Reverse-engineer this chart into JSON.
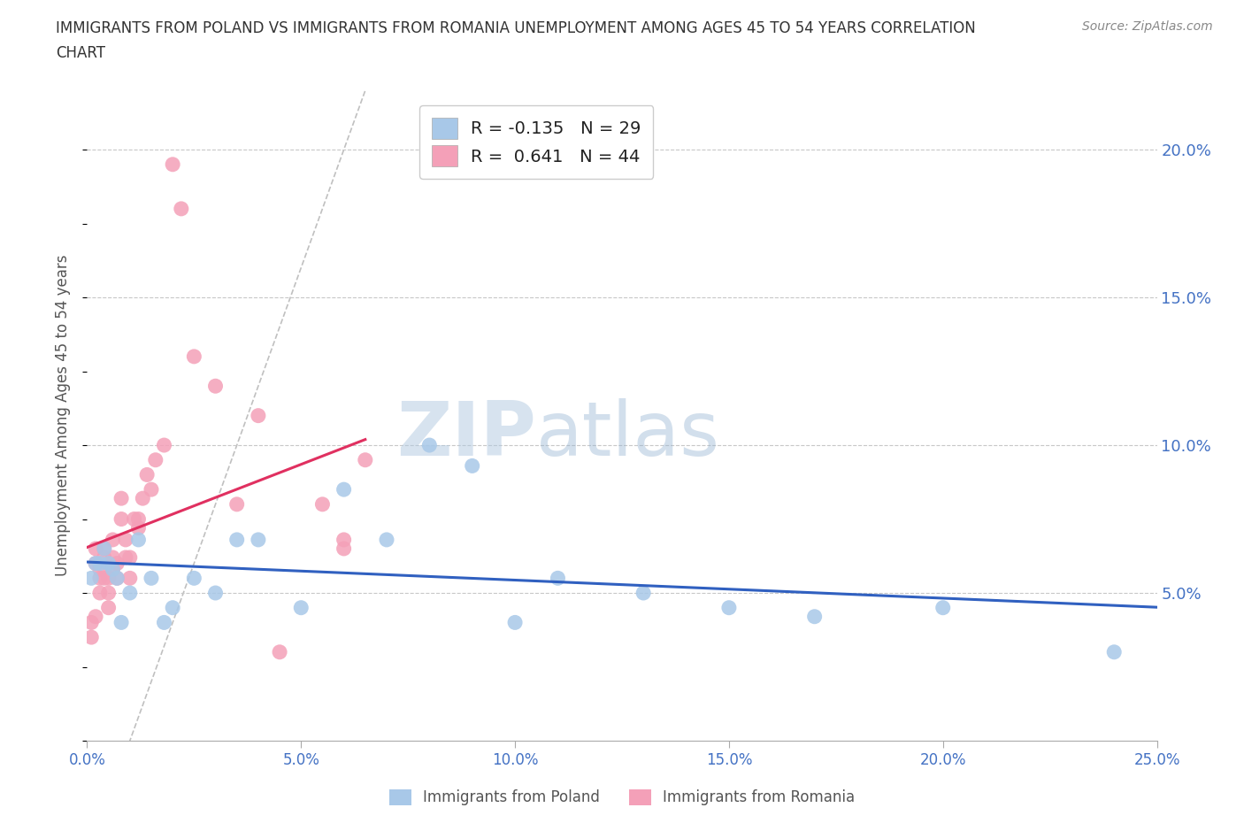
{
  "title_line1": "IMMIGRANTS FROM POLAND VS IMMIGRANTS FROM ROMANIA UNEMPLOYMENT AMONG AGES 45 TO 54 YEARS CORRELATION",
  "title_line2": "CHART",
  "source": "Source: ZipAtlas.com",
  "ylabel": "Unemployment Among Ages 45 to 54 years",
  "xlim": [
    0.0,
    0.25
  ],
  "ylim": [
    0.0,
    0.22
  ],
  "xticks": [
    0.0,
    0.05,
    0.1,
    0.15,
    0.2,
    0.25
  ],
  "xticklabels": [
    "0.0%",
    "5.0%",
    "10.0%",
    "15.0%",
    "20.0%",
    "25.0%"
  ],
  "yticks_right": [
    0.05,
    0.1,
    0.15,
    0.2
  ],
  "yticklabels_right": [
    "5.0%",
    "10.0%",
    "15.0%",
    "20.0%"
  ],
  "poland_R": -0.135,
  "poland_N": 29,
  "romania_R": 0.641,
  "romania_N": 44,
  "poland_color": "#A8C8E8",
  "romania_color": "#F4A0B8",
  "poland_line_color": "#3060C0",
  "romania_line_color": "#E03060",
  "background_color": "#FFFFFF",
  "grid_color": "#C8C8C8",
  "poland_x": [
    0.001,
    0.002,
    0.003,
    0.004,
    0.005,
    0.006,
    0.007,
    0.008,
    0.01,
    0.012,
    0.015,
    0.018,
    0.02,
    0.025,
    0.03,
    0.035,
    0.04,
    0.05,
    0.06,
    0.07,
    0.08,
    0.09,
    0.1,
    0.11,
    0.13,
    0.15,
    0.17,
    0.2,
    0.24
  ],
  "poland_y": [
    0.055,
    0.06,
    0.06,
    0.065,
    0.06,
    0.058,
    0.055,
    0.04,
    0.05,
    0.068,
    0.055,
    0.04,
    0.045,
    0.055,
    0.05,
    0.068,
    0.068,
    0.045,
    0.085,
    0.068,
    0.1,
    0.093,
    0.04,
    0.055,
    0.05,
    0.045,
    0.042,
    0.045,
    0.03
  ],
  "romania_x": [
    0.001,
    0.001,
    0.002,
    0.002,
    0.002,
    0.003,
    0.003,
    0.003,
    0.004,
    0.004,
    0.004,
    0.005,
    0.005,
    0.005,
    0.006,
    0.006,
    0.006,
    0.007,
    0.007,
    0.008,
    0.008,
    0.009,
    0.009,
    0.01,
    0.01,
    0.011,
    0.012,
    0.012,
    0.013,
    0.014,
    0.015,
    0.016,
    0.018,
    0.02,
    0.022,
    0.025,
    0.03,
    0.035,
    0.04,
    0.045,
    0.055,
    0.06,
    0.06,
    0.065
  ],
  "romania_y": [
    0.04,
    0.035,
    0.065,
    0.06,
    0.042,
    0.055,
    0.05,
    0.058,
    0.055,
    0.062,
    0.065,
    0.05,
    0.045,
    0.055,
    0.062,
    0.068,
    0.058,
    0.06,
    0.055,
    0.075,
    0.082,
    0.062,
    0.068,
    0.055,
    0.062,
    0.075,
    0.075,
    0.072,
    0.082,
    0.09,
    0.085,
    0.095,
    0.1,
    0.195,
    0.18,
    0.13,
    0.12,
    0.08,
    0.11,
    0.03,
    0.08,
    0.065,
    0.068,
    0.095
  ],
  "legend_poland_label": "R = -0.135   N = 29",
  "legend_romania_label": "R =  0.641   N = 44",
  "cat_legend_poland": "Immigrants from Poland",
  "cat_legend_romania": "Immigrants from Romania",
  "watermark_zip": "ZIP",
  "watermark_atlas": "atlas"
}
